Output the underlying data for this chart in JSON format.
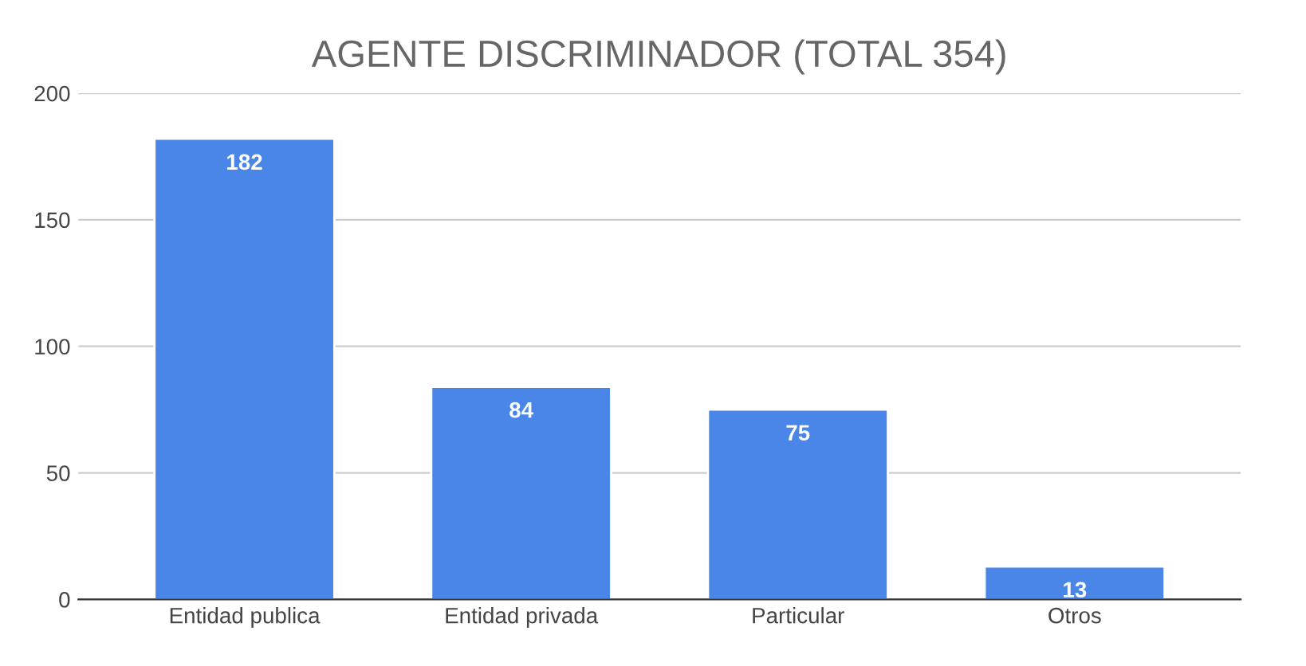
{
  "chart_data": {
    "type": "bar",
    "title": "AGENTE DISCRIMINADOR (TOTAL 354)",
    "categories": [
      "Entidad publica",
      "Entidad privada",
      "Particular",
      "Otros"
    ],
    "values": [
      182,
      84,
      75,
      13
    ],
    "color": "#4a86e8",
    "ylim": [
      0,
      200
    ],
    "yticks": [
      0,
      50,
      100,
      150,
      200
    ],
    "grid": "y",
    "data_labels": true
  }
}
